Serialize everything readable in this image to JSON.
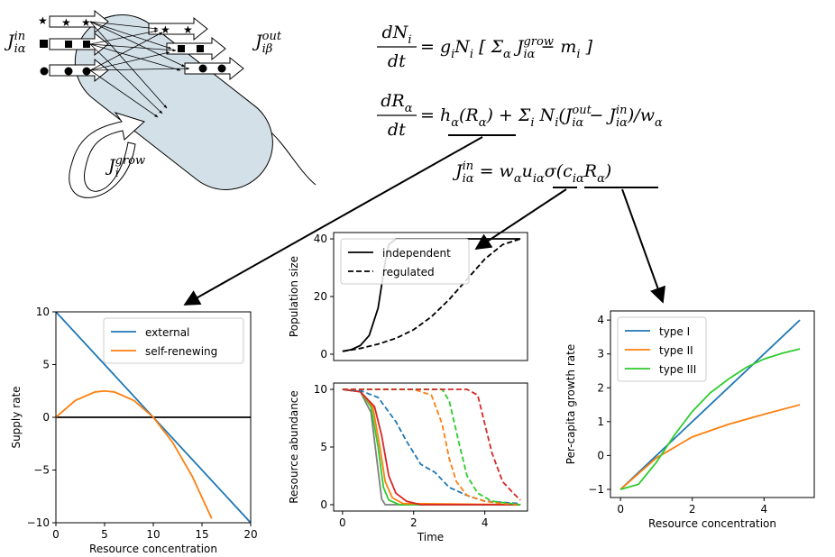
{
  "equations": [
    {
      "num": [
        {
          "t": "dN",
          "sub": "i"
        }
      ],
      "den": [
        {
          "t": "dt"
        }
      ],
      "rhs": [
        {
          "t": "= g",
          "sub": "i"
        },
        {
          "t": "N",
          "sub": "i"
        },
        {
          "t": " [ Σ",
          "sub": "α"
        },
        {
          "t": " J",
          "sub": "iα",
          "sup": "grow"
        },
        {
          "t": " − m",
          "sub": "i"
        },
        {
          "t": " ]"
        }
      ]
    },
    {
      "num": [
        {
          "t": "dR",
          "sub": "α"
        }
      ],
      "den": [
        {
          "t": "dt"
        }
      ],
      "rhs": [
        {
          "t": "= h",
          "sub": "α"
        },
        {
          "t": "(R",
          "sub": "α"
        },
        {
          "t": ") + Σ",
          "sub": "i"
        },
        {
          "t": " N",
          "sub": "i"
        },
        {
          "t": "(J",
          "sub": "iα",
          "sup": "out"
        },
        {
          "t": " − J",
          "sub": "iα",
          "sup": "in"
        },
        {
          "t": ")/w",
          "sub": "α"
        }
      ]
    },
    {
      "rhs": [
        {
          "t": "J",
          "sub": "iα",
          "sup": "in"
        },
        {
          "t": " = w",
          "sub": "α"
        },
        {
          "t": "u",
          "sub": "iα"
        },
        {
          "t": "σ(c",
          "sub": "iα"
        },
        {
          "t": "R",
          "sub": "α"
        },
        {
          "t": ")"
        }
      ]
    }
  ],
  "diagram": {
    "labels": [
      [
        {
          "t": "J",
          "sub": "iα",
          "sup": "in"
        }
      ],
      [
        {
          "t": "J",
          "sub": "iβ",
          "sup": "out"
        }
      ],
      [
        {
          "t": "J",
          "sub": "i",
          "sup": "grow"
        }
      ]
    ]
  },
  "chart_data": [
    {
      "type": "line",
      "xlabel": "Resource concentration",
      "ylabel": "Supply rate",
      "xlim": [
        0,
        20
      ],
      "xticks": [
        0,
        5,
        10,
        15,
        20
      ],
      "ylim": [
        -10,
        10
      ],
      "yticks": [
        {
          "value": -10,
          "label": "−10"
        },
        {
          "value": -5,
          "label": "−5"
        },
        0,
        5,
        10
      ],
      "reference_line": 0,
      "legend": "upper right",
      "series": [
        {
          "name": "external",
          "color": "#1f77b4",
          "x": [
            0,
            20
          ],
          "values": [
            10,
            -10
          ]
        },
        {
          "name": "self-renewing",
          "color": "#ff7f0e",
          "x": [
            0,
            2,
            4,
            5,
            6,
            8,
            10,
            12,
            14,
            16
          ],
          "values": [
            0,
            1.6,
            2.4,
            2.5,
            2.4,
            1.6,
            0,
            -2.4,
            -5.6,
            -9.6
          ]
        }
      ]
    },
    {
      "type": "line",
      "ylabel": "Population size",
      "xlim": [
        -0.25,
        5.2
      ],
      "ylim": [
        -2.2,
        42.2
      ],
      "yticks": [
        0,
        20,
        40
      ],
      "legend": "upper left",
      "series": [
        {
          "name": "independent",
          "color": "#000000",
          "x": [
            0,
            0.25,
            0.5,
            0.75,
            1,
            1.1,
            1.2,
            1.3,
            1.5,
            2,
            3,
            4,
            5
          ],
          "values": [
            1,
            1.6,
            3,
            6.5,
            16,
            24,
            32,
            38,
            40,
            40,
            40,
            40,
            40
          ]
        },
        {
          "name": "regulated",
          "color": "#000000",
          "dash": true,
          "x": [
            0,
            0.5,
            1,
            1.5,
            2,
            2.5,
            3,
            3.5,
            4,
            4.5,
            5
          ],
          "values": [
            1,
            2,
            3.5,
            5.5,
            8.5,
            13,
            19,
            26,
            33,
            38,
            40
          ]
        }
      ]
    },
    {
      "type": "line",
      "xlabel": "Time",
      "ylabel": "Resource abundance",
      "xlim": [
        -0.25,
        5.2
      ],
      "xticks": [
        0,
        2,
        4
      ],
      "ylim": [
        -0.55,
        10.55
      ],
      "yticks": [
        0,
        5,
        10
      ],
      "series": [
        {
          "color": "#7f7f7f",
          "x": [
            0,
            0.5,
            0.8,
            1.0,
            1.1,
            1.2,
            5
          ],
          "values": [
            10,
            9.8,
            8,
            3,
            0.5,
            0,
            0
          ]
        },
        {
          "color": "#2ecc2e",
          "x": [
            0,
            0.5,
            0.8,
            1.0,
            1.15,
            1.3,
            1.6,
            5
          ],
          "values": [
            10,
            9.8,
            8.5,
            5,
            1.5,
            0.4,
            0,
            0
          ]
        },
        {
          "color": "#ff7f0e",
          "x": [
            0,
            0.5,
            0.85,
            1.05,
            1.2,
            1.4,
            1.7,
            5
          ],
          "values": [
            10,
            9.8,
            8.5,
            5,
            2,
            0.6,
            0.1,
            0
          ]
        },
        {
          "color": "#d62728",
          "x": [
            0,
            0.5,
            0.9,
            1.1,
            1.3,
            1.5,
            1.8,
            2.2,
            5
          ],
          "values": [
            10,
            9.8,
            8.5,
            6,
            2.5,
            1,
            0.3,
            0,
            0
          ]
        },
        {
          "color": "#1f77b4",
          "dash": true,
          "x": [
            0,
            0.5,
            1,
            1.5,
            1.8,
            2.2,
            2.6,
            3,
            3.5,
            4,
            5
          ],
          "values": [
            10,
            9.9,
            9.3,
            7.2,
            5.5,
            3.5,
            2.8,
            1.5,
            0.8,
            0.3,
            0.1
          ]
        },
        {
          "color": "#ff7f0e",
          "dash": true,
          "x": [
            0,
            2,
            2.5,
            2.8,
            3.0,
            3.2,
            3.5,
            4,
            4.5,
            5
          ],
          "values": [
            10,
            10,
            9.5,
            7,
            4,
            2,
            0.8,
            0.3,
            0.1,
            0
          ]
        },
        {
          "color": "#2ecc2e",
          "dash": true,
          "x": [
            0,
            2.8,
            3.0,
            3.3,
            3.5,
            3.8,
            4.2,
            5
          ],
          "values": [
            10,
            10,
            9,
            5,
            2.5,
            1,
            0.3,
            0
          ]
        },
        {
          "color": "#d62728",
          "dash": true,
          "x": [
            0,
            3.5,
            3.8,
            4.0,
            4.2,
            4.5,
            4.8,
            5
          ],
          "values": [
            10,
            10,
            9.5,
            7,
            4.5,
            2,
            1,
            0.4
          ]
        }
      ]
    },
    {
      "type": "line",
      "xlabel": "Resource concentration",
      "ylabel": "Per-capita growth rate",
      "xlim": [
        -0.28,
        5.4
      ],
      "xticks": [
        0,
        2,
        4
      ],
      "ylim": [
        -1.24,
        4.27
      ],
      "yticks": [
        {
          "value": -1,
          "label": "−1"
        },
        0,
        1,
        2,
        3,
        4
      ],
      "legend": "upper left",
      "series": [
        {
          "name": "type I",
          "color": "#1f77b4",
          "x": [
            0,
            5
          ],
          "values": [
            -1,
            4
          ]
        },
        {
          "name": "type II",
          "color": "#ff7f0e",
          "x": [
            0,
            1,
            2,
            3,
            4,
            5
          ],
          "values": [
            -1,
            -0.07,
            0.55,
            0.92,
            1.22,
            1.5
          ]
        },
        {
          "name": "type III",
          "color": "#2ecc2e",
          "x": [
            0,
            0.5,
            1,
            1.5,
            2,
            2.5,
            3,
            3.5,
            4,
            4.5,
            5
          ],
          "values": [
            -1,
            -0.85,
            -0.2,
            0.6,
            1.3,
            1.85,
            2.25,
            2.6,
            2.85,
            3.02,
            3.15
          ]
        }
      ]
    }
  ]
}
